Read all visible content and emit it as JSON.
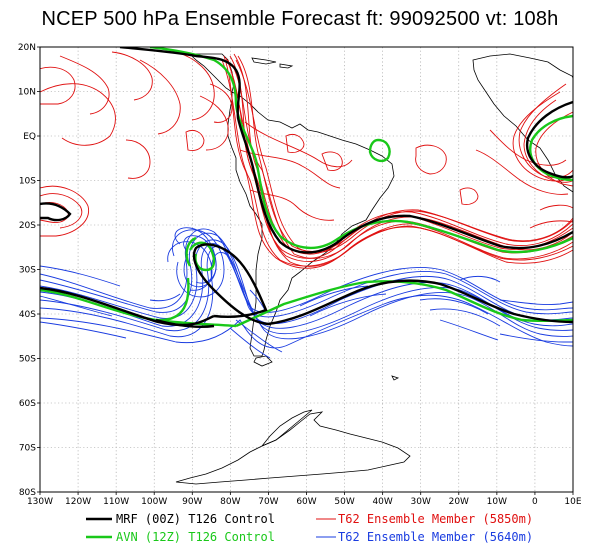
{
  "title": "NCEP 500 hPa Ensemble Forecast  ft: 99092500 vt: 108h",
  "map": {
    "lat_labels": [
      "20N",
      "10N",
      "EQ",
      "10S",
      "20S",
      "30S",
      "40S",
      "50S",
      "60S",
      "70S",
      "80S"
    ],
    "lon_labels": [
      "130W",
      "120W",
      "110W",
      "100W",
      "90W",
      "80W",
      "70W",
      "60W",
      "50W",
      "40W",
      "30W",
      "20W",
      "10W",
      "0",
      "10E"
    ],
    "lat_range": [
      -80,
      20
    ],
    "lon_range": [
      -130,
      10
    ]
  },
  "legend": {
    "items": [
      {
        "label": "MRF (00Z) T126 Control",
        "color": "#000000"
      },
      {
        "label": "AVN (12Z) T126 Control",
        "color": "#19c819"
      },
      {
        "label": "T62 Ensemble Member (5850m)",
        "color": "#e01010"
      },
      {
        "label": "T62 Ensemble Member (5640m)",
        "color": "#1a3ce0"
      }
    ]
  },
  "colors": {
    "mrf": "#000000",
    "avn": "#19c819",
    "red_member": "#e01010",
    "blue_member": "#1a3ce0"
  }
}
